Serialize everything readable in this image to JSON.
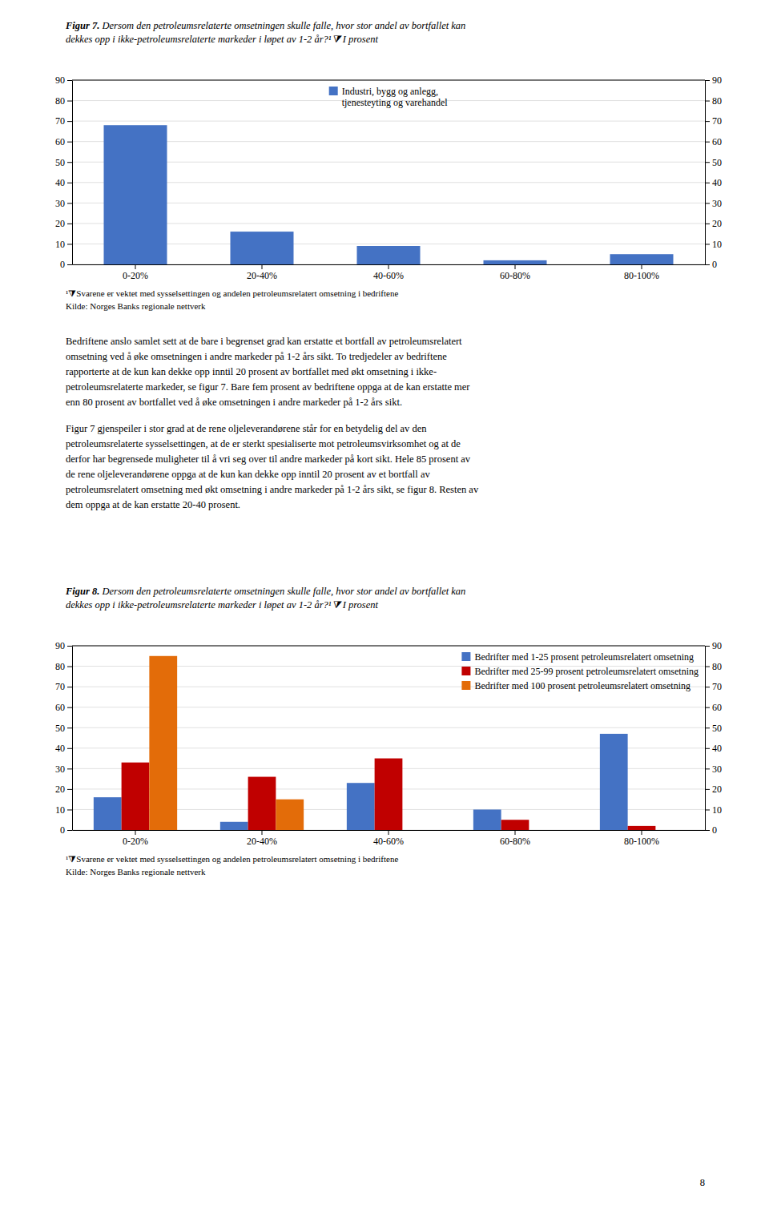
{
  "chart_data": [
    {
      "type": "bar",
      "title": "Figur 7. Dersom den petroleumsrelaterte omsetningen skulle falle, hvor stor andel av bortfallet kan\ndekkes opp i ikke-petroleumsrelaterte markeder i løpet av 1-2 år?¹⧩ I prosent",
      "categories": [
        "0-20%",
        "20-40%",
        "40-60%",
        "60-80%",
        "80-100%"
      ],
      "series": [
        {
          "name": "Industri, bygg og anlegg,\ntjenesteyting og varehandel",
          "color": "#4472C4",
          "values": [
            68,
            16,
            9,
            2,
            5
          ]
        }
      ],
      "ylim": [
        0,
        90
      ],
      "yticks": [
        0,
        10,
        20,
        30,
        40,
        50,
        60,
        70,
        80,
        90
      ],
      "y2lim": [
        0,
        90
      ],
      "y2ticks": [
        0,
        10,
        20,
        30,
        40,
        50,
        60,
        70,
        80,
        90
      ],
      "grid": true,
      "legend": "top",
      "annotations": [
        "¹⧩Svarene er vektet med sysselsettingen og andelen petroleumsrelatert omsetning i bedriftene",
        "Kilde: Norges Banks regionale nettverk"
      ]
    },
    {
      "type": "bar",
      "title": "Figur 8. Dersom den petroleumsrelaterte omsetningen skulle falle, hvor stor andel av bortfallet kan\ndekkes opp i ikke-petroleumsrelaterte markeder i løpet av 1-2 år?¹⧩ I prosent",
      "categories": [
        "0-20%",
        "20-40%",
        "40-60%",
        "60-80%",
        "80-100%"
      ],
      "series": [
        {
          "name": "Bedrifter med 1-25 prosent petroleumsrelatert omsetning",
          "color": "#4472C4",
          "values": [
            16,
            4,
            23,
            10,
            47
          ]
        },
        {
          "name": "Bedrifter med 25-99 prosent petroleumsrelatert omsetning",
          "color": "#C00000",
          "values": [
            33,
            26,
            35,
            5,
            2
          ]
        },
        {
          "name": "Bedrifter med 100 prosent petroleumsrelatert omsetning",
          "color": "#E36C09",
          "values": [
            85,
            15,
            0,
            0,
            0
          ]
        }
      ],
      "ylim": [
        0,
        90
      ],
      "yticks": [
        0,
        10,
        20,
        30,
        40,
        50,
        60,
        70,
        80,
        90
      ],
      "y2lim": [
        0,
        90
      ],
      "y2ticks": [
        0,
        10,
        20,
        30,
        40,
        50,
        60,
        70,
        80,
        90
      ],
      "grid": true,
      "legend": "top-right",
      "annotations": [
        "¹⧩Svarene er vektet med sysselsettingen og andelen petroleumsrelatert omsetning i bedriftene",
        "Kilde: Norges Banks regionale nettverk"
      ]
    }
  ],
  "paragraphs": [
    [
      "Bedriftene anslo samlet sett at de bare i begrenset grad kan erstatte et bortfall av petroleumsrelatert",
      "omsetning ved å øke omsetningen i andre markeder på 1-2 års sikt. To tredjedeler av bedriftene",
      "rapporterte at de kun kan dekke opp inntil 20 prosent av bortfallet med økt omsetning i ikke-",
      "petroleumsrelaterte markeder, se figur 7. Bare fem prosent av bedriftene oppga at de kan erstatte mer",
      "enn 80 prosent av bortfallet ved å øke omsetningen i andre markeder på 1-2 års sikt."
    ],
    [
      "Figur 7 gjenspeiler i stor grad at de rene oljeleverandørene står for en betydelig del av den",
      "petroleumsrelaterte sysselsettingen, at de er sterkt spesialiserte mot petroleumsvirksomhet og at de",
      "derfor har begrensede muligheter til å vri seg over til andre markeder på kort sikt. Hele 85 prosent av",
      "de rene oljeleverandørene oppga at de kun kan dekke opp inntil 20 prosent av et bortfall av",
      "petroleumsrelatert omsetning med økt omsetning i andre markeder på 1-2 års sikt, se figur 8. Resten av",
      "dem oppga at de kan erstatte 20-40 prosent."
    ]
  ],
  "page_number": "8"
}
